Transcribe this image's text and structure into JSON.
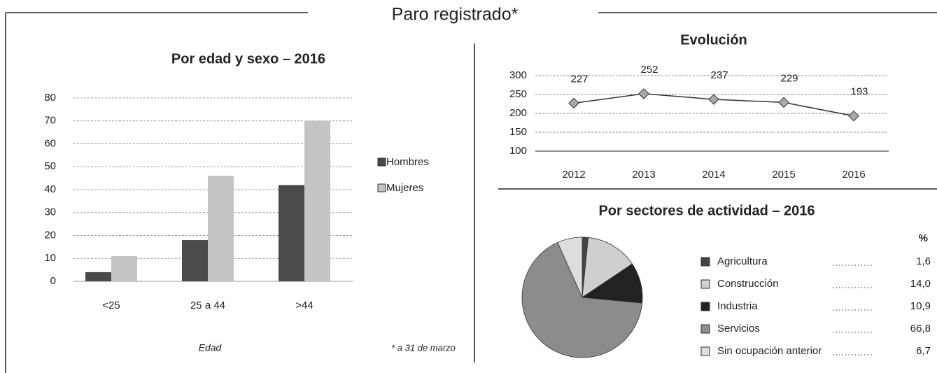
{
  "title": "Paro registrado*",
  "note": "* a 31 de marzo",
  "chart_data": [
    {
      "type": "bar",
      "title": "Por edad y sexo – 2016",
      "x_label": "Edad",
      "categories": [
        "<25",
        "25 a 44",
        ">44"
      ],
      "series": [
        {
          "name": "Hombres",
          "color": "#4a4a4a",
          "values": [
            4,
            18,
            42
          ]
        },
        {
          "name": "Mujeres",
          "color": "#c4c4c4",
          "values": [
            11,
            46,
            70
          ]
        }
      ],
      "ylim": [
        0,
        80
      ],
      "yticks": [
        0,
        10,
        20,
        30,
        40,
        50,
        60,
        70,
        80
      ],
      "grid": true
    },
    {
      "type": "line",
      "title": "Evolución",
      "categories": [
        "2012",
        "2013",
        "2014",
        "2015",
        "2016"
      ],
      "values": [
        227,
        252,
        237,
        229,
        193
      ],
      "color": "#333333",
      "ylim": [
        100,
        300
      ],
      "yticks": [
        100,
        150,
        200,
        250,
        300
      ],
      "grid": true
    },
    {
      "type": "pie",
      "title": "Por sectores de actividad – 2016",
      "value_header": "%",
      "categories": [
        "Agricultura",
        "Construcción",
        "Industria",
        "Servicios",
        "Sin ocupación anterior"
      ],
      "values": [
        1.6,
        14.0,
        10.9,
        66.8,
        6.7
      ],
      "value_labels": [
        "1,6",
        "14,0",
        "10,9",
        "66,8",
        "6,7"
      ],
      "colors": [
        "#444444",
        "#cfcfcf",
        "#222222",
        "#8c8c8c",
        "#dddddd"
      ]
    }
  ]
}
